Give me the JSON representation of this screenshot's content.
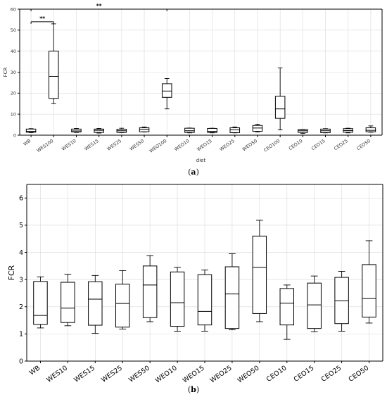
{
  "chart_data": [
    {
      "type": "box",
      "panel": "a",
      "caption_letter": "a",
      "xlabel": "diet",
      "ylabel": "FCR",
      "ylim": [
        0,
        60
      ],
      "yticks": [
        0,
        10,
        20,
        30,
        40,
        50,
        60
      ],
      "grid": true,
      "categories": [
        "WB",
        "WES100",
        "WES10",
        "WES15",
        "WES25",
        "WES50",
        "WEO100",
        "WEO10",
        "WEO15",
        "WEO25",
        "WEO50",
        "CEO100",
        "CEO10",
        "CEO15",
        "CEO25",
        "CEO50"
      ],
      "boxes": [
        {
          "min": 1.2,
          "q1": 1.4,
          "median": 1.8,
          "q3": 2.9,
          "max": 3.1
        },
        {
          "min": 15,
          "q1": 17.5,
          "median": 28,
          "q3": 40,
          "max": 53
        },
        {
          "min": 1.3,
          "q1": 1.5,
          "median": 2.0,
          "q3": 2.9,
          "max": 3.2
        },
        {
          "min": 1.0,
          "q1": 1.3,
          "median": 2.3,
          "q3": 2.9,
          "max": 3.2
        },
        {
          "min": 1.2,
          "q1": 1.3,
          "median": 2.1,
          "q3": 2.8,
          "max": 3.3
        },
        {
          "min": 1.5,
          "q1": 1.6,
          "median": 2.8,
          "q3": 3.5,
          "max": 3.9
        },
        {
          "min": 12.5,
          "q1": 18,
          "median": 21,
          "q3": 24.5,
          "max": 27
        },
        {
          "min": 1.1,
          "q1": 1.3,
          "median": 2.1,
          "q3": 3.3,
          "max": 3.4
        },
        {
          "min": 1.1,
          "q1": 1.3,
          "median": 1.8,
          "q3": 3.2,
          "max": 3.3
        },
        {
          "min": 1.1,
          "q1": 1.2,
          "median": 2.5,
          "q3": 3.5,
          "max": 3.9
        },
        {
          "min": 1.5,
          "q1": 1.8,
          "median": 3.4,
          "q3": 4.6,
          "max": 5.2
        },
        {
          "min": 2.5,
          "q1": 8,
          "median": 12.5,
          "q3": 18.5,
          "max": 32
        },
        {
          "min": 0.8,
          "q1": 1.3,
          "median": 2.1,
          "q3": 2.7,
          "max": 2.8
        },
        {
          "min": 1.1,
          "q1": 1.2,
          "median": 2.1,
          "q3": 2.9,
          "max": 3.1
        },
        {
          "min": 1.1,
          "q1": 1.4,
          "median": 2.2,
          "q3": 3.1,
          "max": 3.3
        },
        {
          "min": 1.4,
          "q1": 1.6,
          "median": 2.3,
          "q3": 3.5,
          "max": 4.4
        }
      ],
      "annotations": [
        {
          "from": 0,
          "to": 1,
          "y": 54,
          "label": "**"
        },
        {
          "from": 0,
          "to": 6,
          "y": 60,
          "label": "**"
        }
      ]
    },
    {
      "type": "box",
      "panel": "b",
      "caption_letter": "b",
      "xlabel": "",
      "ylabel": "FCR",
      "ylim": [
        0,
        6.5
      ],
      "yticks": [
        0,
        1,
        2,
        3,
        4,
        5,
        6
      ],
      "grid": true,
      "categories": [
        "WB",
        "WES10",
        "WES15",
        "WES25",
        "WES50",
        "WEO10",
        "WEO15",
        "WEO25",
        "WEO50",
        "CEO10",
        "CEO15",
        "CEO25",
        "CEO50"
      ],
      "boxes": [
        {
          "min": 1.22,
          "q1": 1.35,
          "median": 1.68,
          "q3": 2.93,
          "max": 3.1
        },
        {
          "min": 1.3,
          "q1": 1.42,
          "median": 1.95,
          "q3": 2.9,
          "max": 3.2
        },
        {
          "min": 1.02,
          "q1": 1.32,
          "median": 2.28,
          "q3": 2.92,
          "max": 3.15
        },
        {
          "min": 1.18,
          "q1": 1.25,
          "median": 2.12,
          "q3": 2.83,
          "max": 3.33
        },
        {
          "min": 1.45,
          "q1": 1.6,
          "median": 2.8,
          "q3": 3.5,
          "max": 3.88
        },
        {
          "min": 1.1,
          "q1": 1.28,
          "median": 2.15,
          "q3": 3.28,
          "max": 3.45
        },
        {
          "min": 1.1,
          "q1": 1.33,
          "median": 1.83,
          "q3": 3.18,
          "max": 3.35
        },
        {
          "min": 1.15,
          "q1": 1.2,
          "median": 2.47,
          "q3": 3.47,
          "max": 3.95
        },
        {
          "min": 1.45,
          "q1": 1.75,
          "median": 3.45,
          "q3": 4.6,
          "max": 5.18
        },
        {
          "min": 0.8,
          "q1": 1.33,
          "median": 2.13,
          "q3": 2.67,
          "max": 2.8
        },
        {
          "min": 1.08,
          "q1": 1.2,
          "median": 2.07,
          "q3": 2.87,
          "max": 3.13
        },
        {
          "min": 1.1,
          "q1": 1.38,
          "median": 2.22,
          "q3": 3.08,
          "max": 3.3
        },
        {
          "min": 1.4,
          "q1": 1.62,
          "median": 2.3,
          "q3": 3.55,
          "max": 4.43
        }
      ]
    }
  ]
}
